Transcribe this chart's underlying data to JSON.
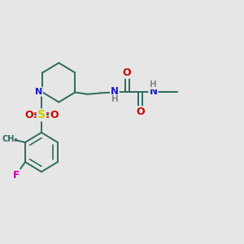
{
  "bg_color": "#e6e6e6",
  "bond_color": "#2d6b5e",
  "fig_size": [
    3.0,
    3.0
  ],
  "dpi": 100,
  "label_colors": {
    "N": "#1a1acc",
    "S": "#cccc00",
    "O": "#cc0000",
    "F": "#cc00aa",
    "H": "#888888",
    "C": "#2d6b5e"
  }
}
